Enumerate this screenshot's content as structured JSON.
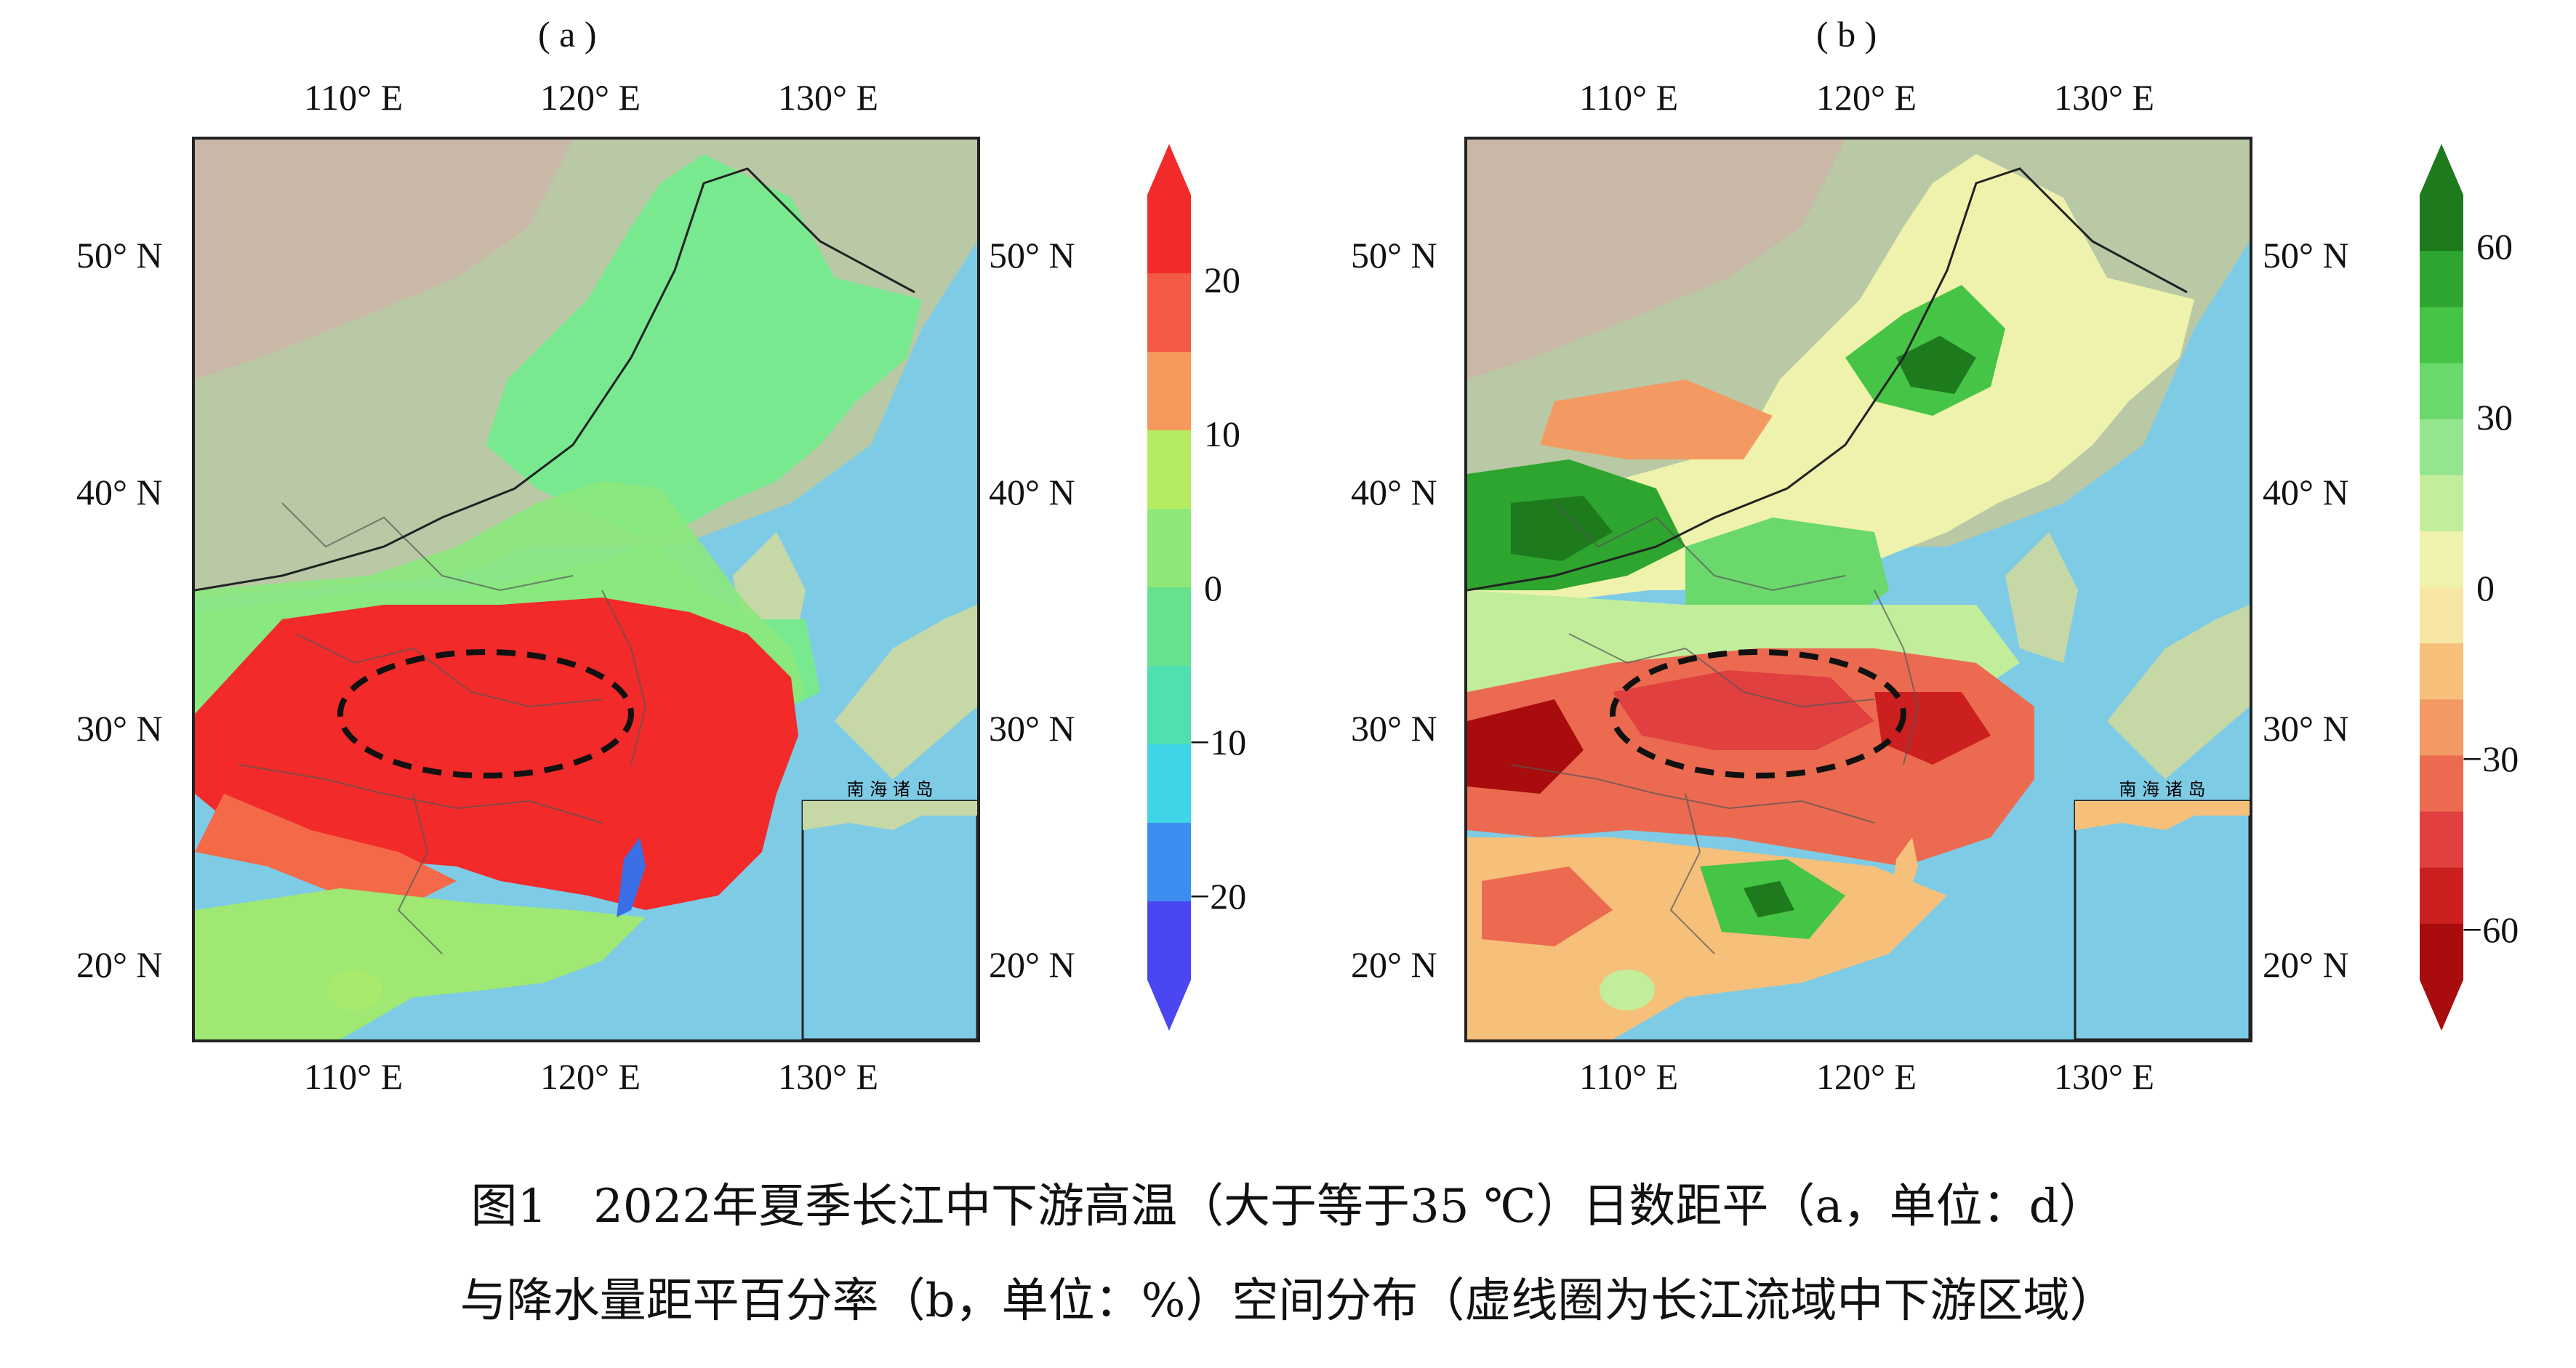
{
  "panels": [
    {
      "letter": "( a )",
      "lon_labels": [
        "110° E",
        "120° E",
        "130° E"
      ],
      "lat_labels": [
        "50° N",
        "40° N",
        "30° N",
        "20° N"
      ],
      "inset_label": "南 海 诸 岛",
      "colorbar": {
        "ticks": [
          "20",
          "10",
          "0",
          "−10",
          "−20"
        ],
        "colors": [
          "#f22a2a",
          "#f25a46",
          "#f59a5c",
          "#b6ec62",
          "#8ee878",
          "#66e28e",
          "#4fdfb0",
          "#3ed6e6",
          "#3b8ef0",
          "#4a46f2"
        ]
      }
    },
    {
      "letter": "( b )",
      "lon_labels": [
        "110° E",
        "120° E",
        "130° E"
      ],
      "lat_labels": [
        "50° N",
        "40° N",
        "30° N",
        "20° N"
      ],
      "inset_label": "南 海 诸 岛",
      "colorbar": {
        "ticks": [
          "60",
          "30",
          "0",
          "−30",
          "−60"
        ],
        "colors": [
          "#1d7a1d",
          "#2ea52e",
          "#46c446",
          "#6ad86a",
          "#95e58f",
          "#c2ee9c",
          "#eef2ac",
          "#f7e6a4",
          "#f7c07a",
          "#f29a62",
          "#ec6a50",
          "#e04040",
          "#cc2020",
          "#a80c0c"
        ]
      }
    }
  ],
  "caption": {
    "line1": "图1　2022年夏季长江中下游高温（大于等于35 ℃）日数距平（a，单位：d）",
    "line2": "与降水量距平百分率（b，单位：%）空间分布（虚线圈为长江流域中下游区域）"
  }
}
